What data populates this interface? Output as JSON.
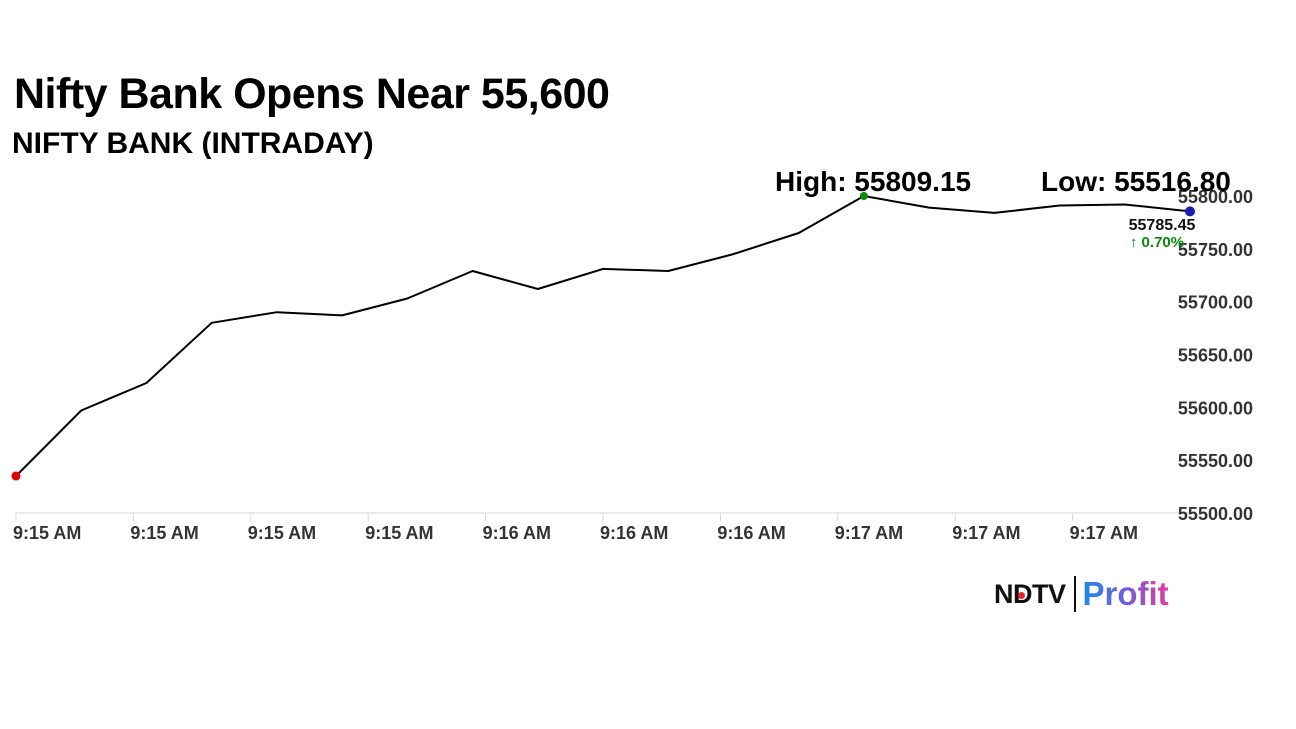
{
  "headline": "Nifty Bank Opens Near 55,600",
  "chart_data": {
    "type": "line",
    "title": "NIFTY BANK (INTRADAY)",
    "high_label": "High: 55809.15",
    "low_label": "Low: 55516.80",
    "last_value": "55785.45",
    "change_text": "↑ 0.70%",
    "ylim": [
      55500,
      55800
    ],
    "y_ticks": [
      "55500.00",
      "55550.00",
      "55600.00",
      "55650.00",
      "55700.00",
      "55750.00",
      "55800.00"
    ],
    "x_tick_labels": [
      "9:15 AM",
      "9:15 AM",
      "9:15 AM",
      "9:15 AM",
      "9:16 AM",
      "9:16 AM",
      "9:16 AM",
      "9:17 AM",
      "9:17 AM",
      "9:17 AM"
    ],
    "series": [
      {
        "values": [
          55535,
          55597,
          55623,
          55680,
          55690,
          55687,
          55703,
          55729,
          55712,
          55731,
          55729,
          55745,
          55765,
          55800,
          55789,
          55784,
          55791,
          55792,
          55785.45
        ]
      }
    ],
    "start_marker_color": "#e00000",
    "high_marker_color": "#0a8a0a",
    "last_marker_color": "#1b1bb5",
    "change_color": "#0a8a0a",
    "grid": false
  },
  "logo": {
    "part1": "NDTV",
    "part2": "Profit"
  }
}
